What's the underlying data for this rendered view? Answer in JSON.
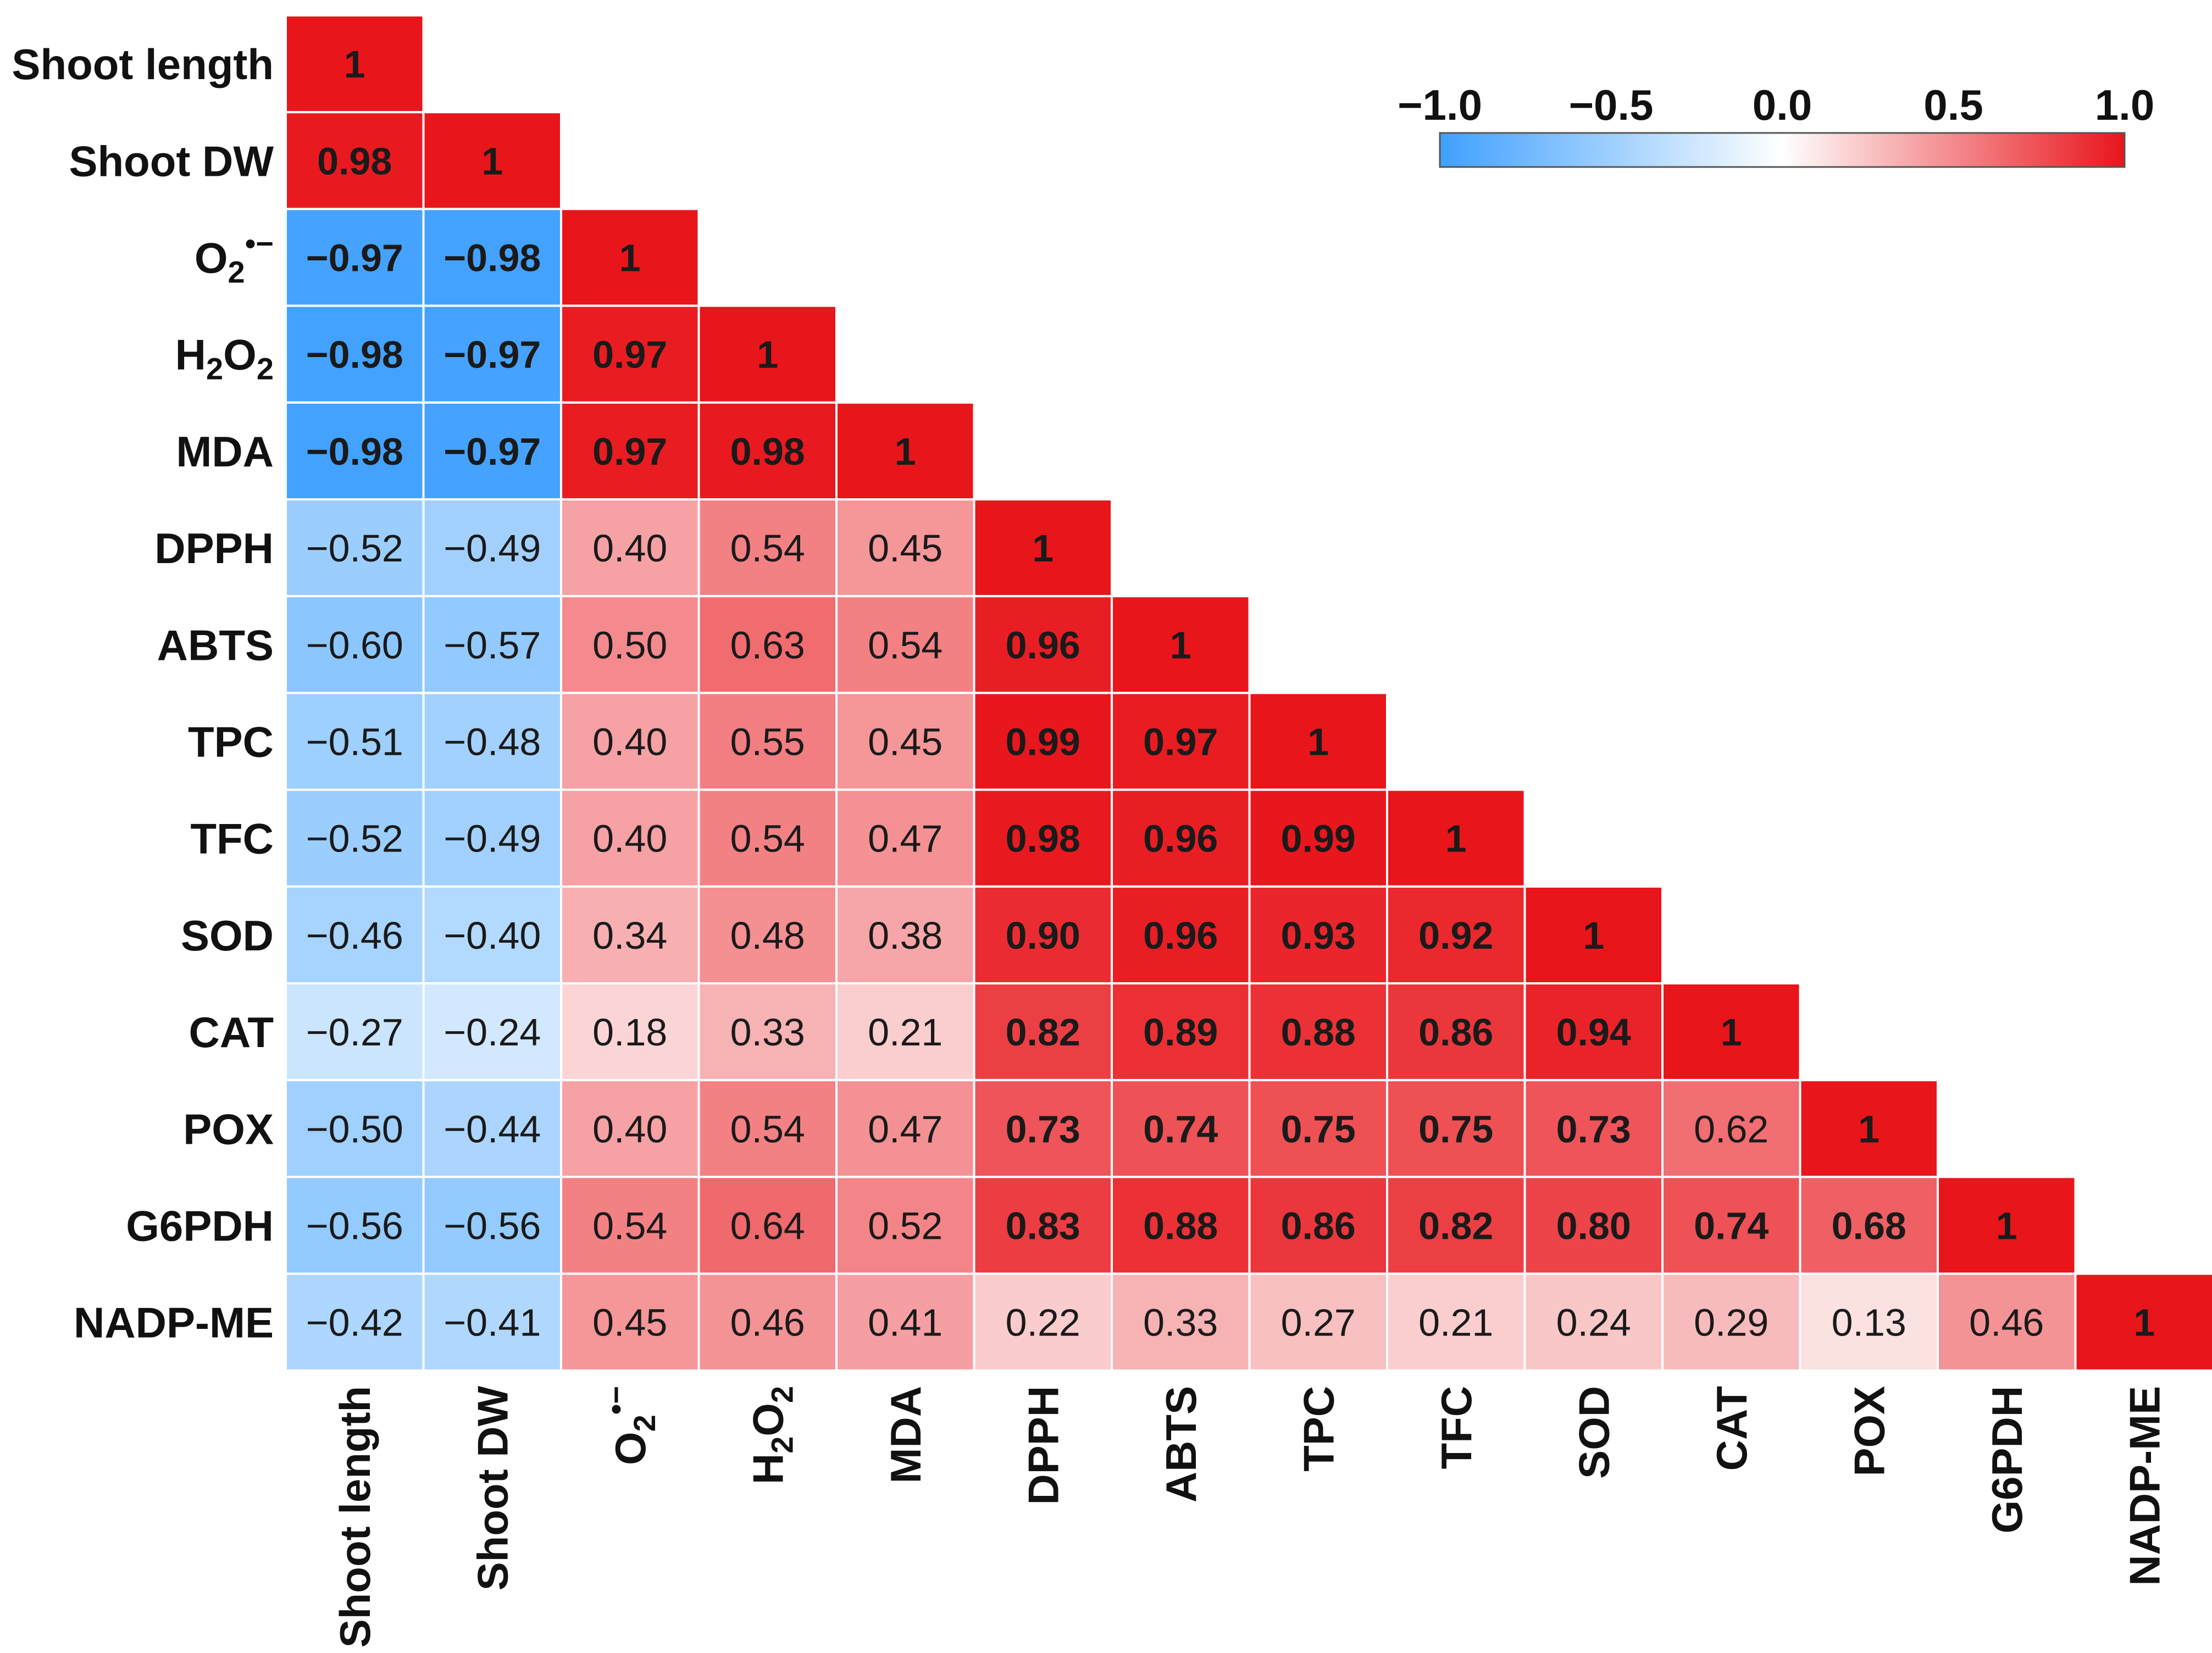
{
  "chart_data": {
    "type": "heatmap",
    "title": "",
    "matrix_shape": "lower-triangle",
    "variables": [
      "Shoot length",
      "Shoot DW",
      "O2•−",
      "H2O2",
      "MDA",
      "DPPH",
      "ABTS",
      "TPC",
      "TFC",
      "SOD",
      "CAT",
      "POX",
      "G6PDH",
      "NADP-ME"
    ],
    "variable_labels": [
      {
        "base": "Shoot length"
      },
      {
        "base": "Shoot DW"
      },
      {
        "base": "O",
        "sub": "2",
        "sup": "•−"
      },
      {
        "base": "H",
        "sub": "2",
        "base2": "O",
        "sub2": "2"
      },
      {
        "base": "MDA"
      },
      {
        "base": "DPPH"
      },
      {
        "base": "ABTS"
      },
      {
        "base": "TPC"
      },
      {
        "base": "TFC"
      },
      {
        "base": "SOD"
      },
      {
        "base": "CAT"
      },
      {
        "base": "POX"
      },
      {
        "base": "G6PDH"
      },
      {
        "base": "NADP-ME"
      }
    ],
    "values": [
      [
        1
      ],
      [
        0.98,
        1
      ],
      [
        -0.97,
        -0.98,
        1
      ],
      [
        -0.98,
        -0.97,
        0.97,
        1
      ],
      [
        -0.98,
        -0.97,
        0.97,
        0.98,
        1
      ],
      [
        -0.52,
        -0.49,
        0.4,
        0.54,
        0.45,
        1
      ],
      [
        -0.6,
        -0.57,
        0.5,
        0.63,
        0.54,
        0.96,
        1
      ],
      [
        -0.51,
        -0.48,
        0.4,
        0.55,
        0.45,
        0.99,
        0.97,
        1
      ],
      [
        -0.52,
        -0.49,
        0.4,
        0.54,
        0.47,
        0.98,
        0.96,
        0.99,
        1
      ],
      [
        -0.46,
        -0.4,
        0.34,
        0.48,
        0.38,
        0.9,
        0.96,
        0.93,
        0.92,
        1
      ],
      [
        -0.27,
        -0.24,
        0.18,
        0.33,
        0.21,
        0.82,
        0.89,
        0.88,
        0.86,
        0.94,
        1
      ],
      [
        -0.5,
        -0.44,
        0.4,
        0.54,
        0.47,
        0.73,
        0.74,
        0.75,
        0.75,
        0.73,
        0.62,
        1
      ],
      [
        -0.56,
        -0.56,
        0.54,
        0.64,
        0.52,
        0.83,
        0.88,
        0.86,
        0.82,
        0.8,
        0.74,
        0.68,
        1
      ],
      [
        -0.42,
        -0.41,
        0.45,
        0.46,
        0.41,
        0.22,
        0.33,
        0.27,
        0.21,
        0.24,
        0.29,
        0.13,
        0.46,
        1
      ]
    ],
    "bold_threshold": 0.68,
    "colorbar": {
      "range": [
        -1.0,
        1.0
      ],
      "ticks": [
        -1.0,
        -0.5,
        0.0,
        0.5,
        1.0
      ],
      "tick_labels": [
        "−1.0",
        "−0.5",
        "0.0",
        "0.5",
        "1.0"
      ],
      "colors": {
        "low": "#3fa0ff",
        "mid": "#ffffff",
        "high": "#e8151b"
      },
      "placement": "top-right"
    }
  }
}
